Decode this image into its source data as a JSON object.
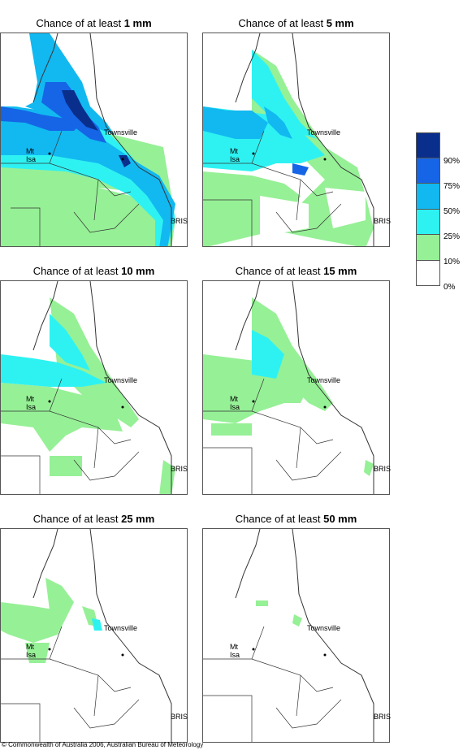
{
  "panels": [
    {
      "prefix": "Chance of at least ",
      "amount": "1 mm"
    },
    {
      "prefix": "Chance of at least ",
      "amount": "5 mm"
    },
    {
      "prefix": "Chance of at least ",
      "amount": "10 mm"
    },
    {
      "prefix": "Chance of at least ",
      "amount": "15 mm"
    },
    {
      "prefix": "Chance of at least ",
      "amount": "25 mm"
    },
    {
      "prefix": "Chance of at least ",
      "amount": "50 mm"
    }
  ],
  "places": {
    "townsville": "Townsville",
    "mt_isa": "Mt Isa",
    "brisbane": "BRIS"
  },
  "legend": {
    "labels": [
      "90%",
      "75%",
      "50%",
      "25%",
      "10%",
      "0%"
    ],
    "colors": [
      "#0a2e8c",
      "#1565e6",
      "#12b8f0",
      "#2ef2f2",
      "#96f096",
      "#ffffff"
    ]
  },
  "footer": "© Commonwealth of Australia 2006, Australian Bureau of Meteorology"
}
